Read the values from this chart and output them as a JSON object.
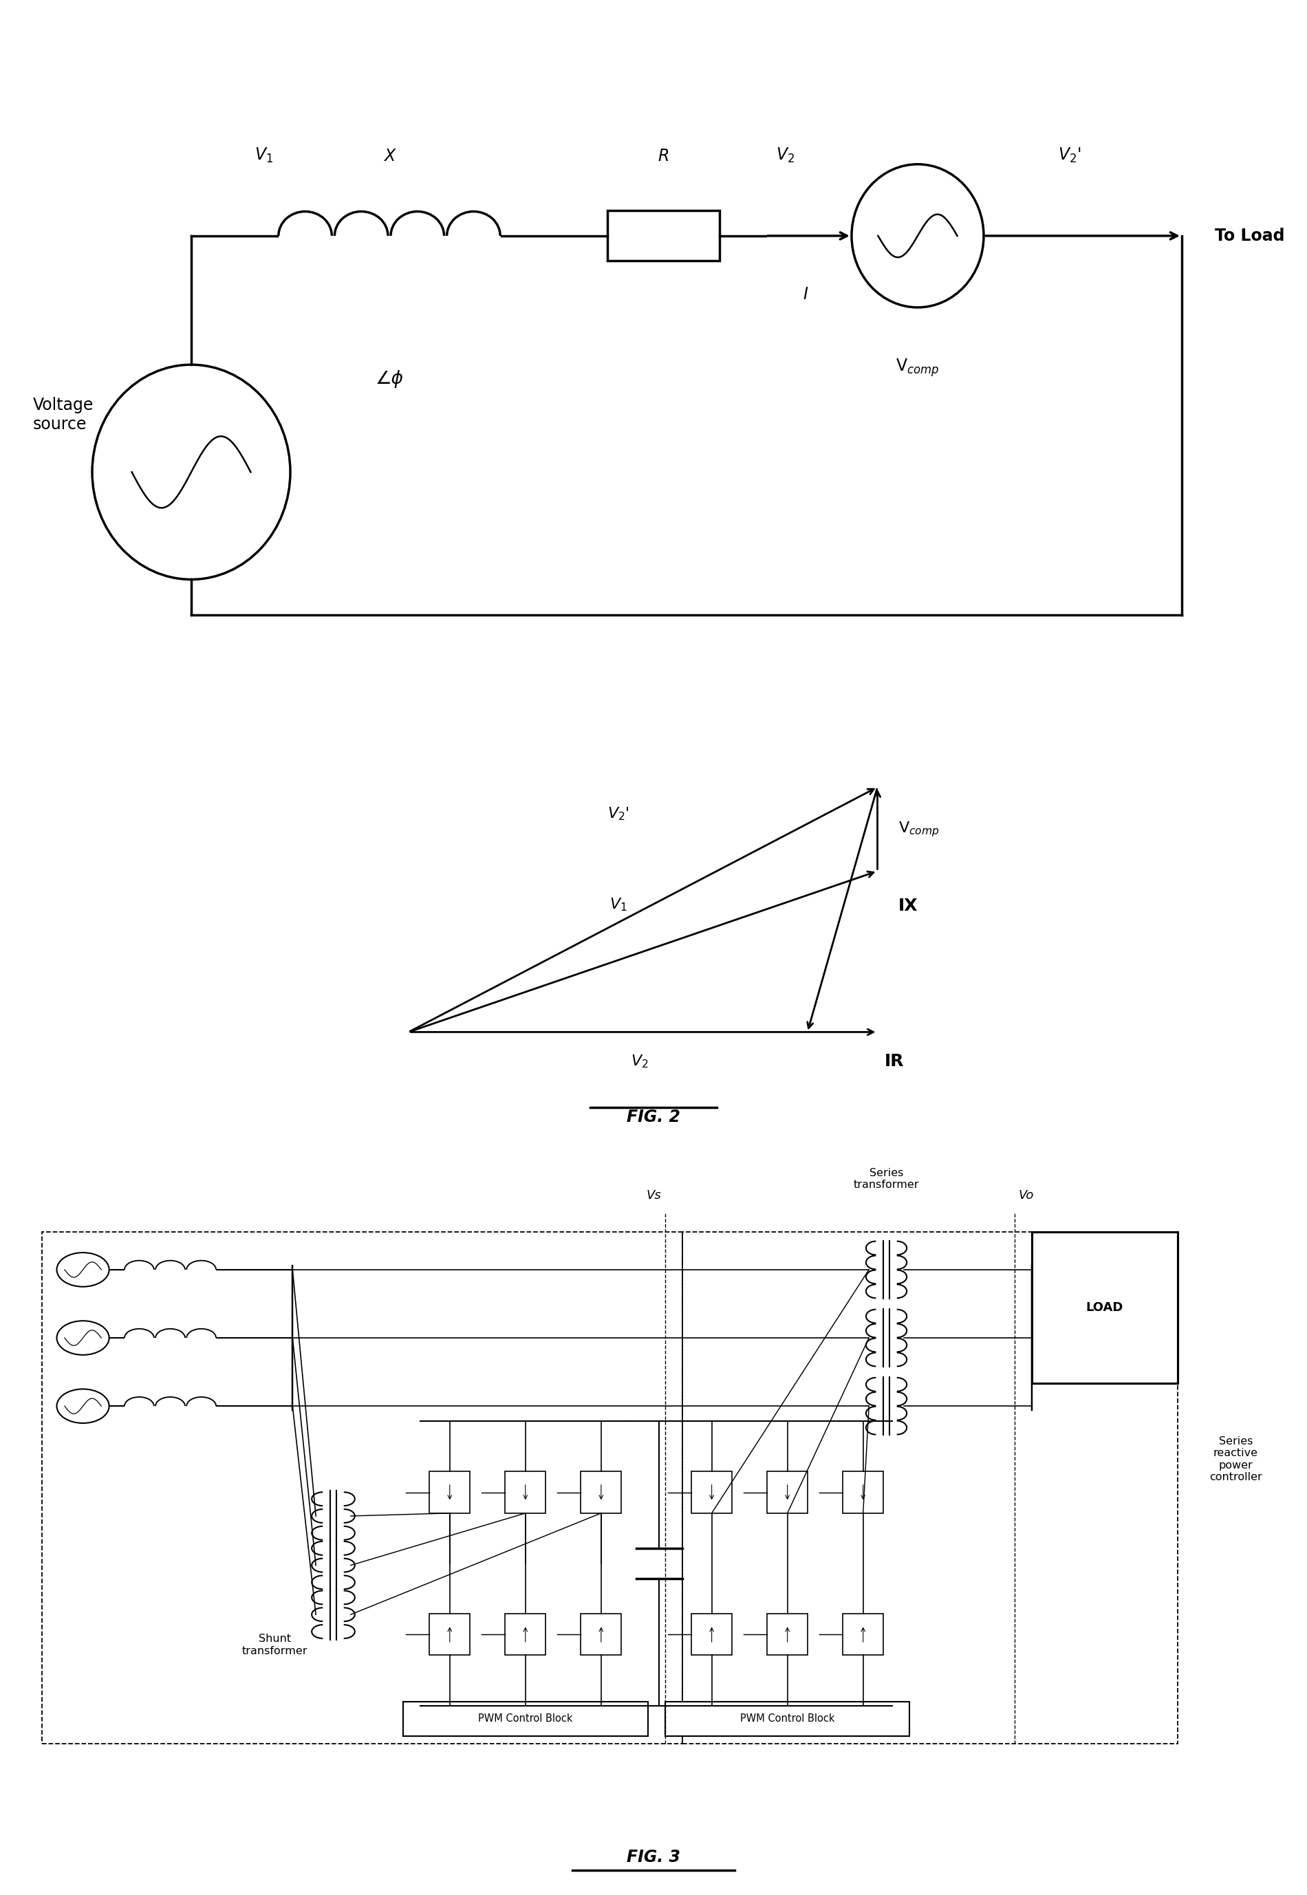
{
  "fig_width": 19.0,
  "fig_height": 27.55,
  "bg_color": "#ffffff",
  "fig2_label": "FIG. 2",
  "fig3_label": "FIG. 3",
  "circuit_labels": {
    "V1": "V$_1$",
    "X": "X",
    "R": "R",
    "V2": "V$_2$",
    "V2prime": "V$_2$'",
    "I": "I",
    "Vcomp": "V$_{comp}$",
    "ToLoad": "To Load",
    "VoltageSource": "Voltage\nsource",
    "phi": "∠ϕ"
  },
  "phasor_labels": {
    "V2prime": "V$_2$'",
    "Vcomp": "V$_{comp}$",
    "V1": "V$_1$",
    "V2": "V$_2$",
    "IX": "IX",
    "IR": "IR"
  }
}
